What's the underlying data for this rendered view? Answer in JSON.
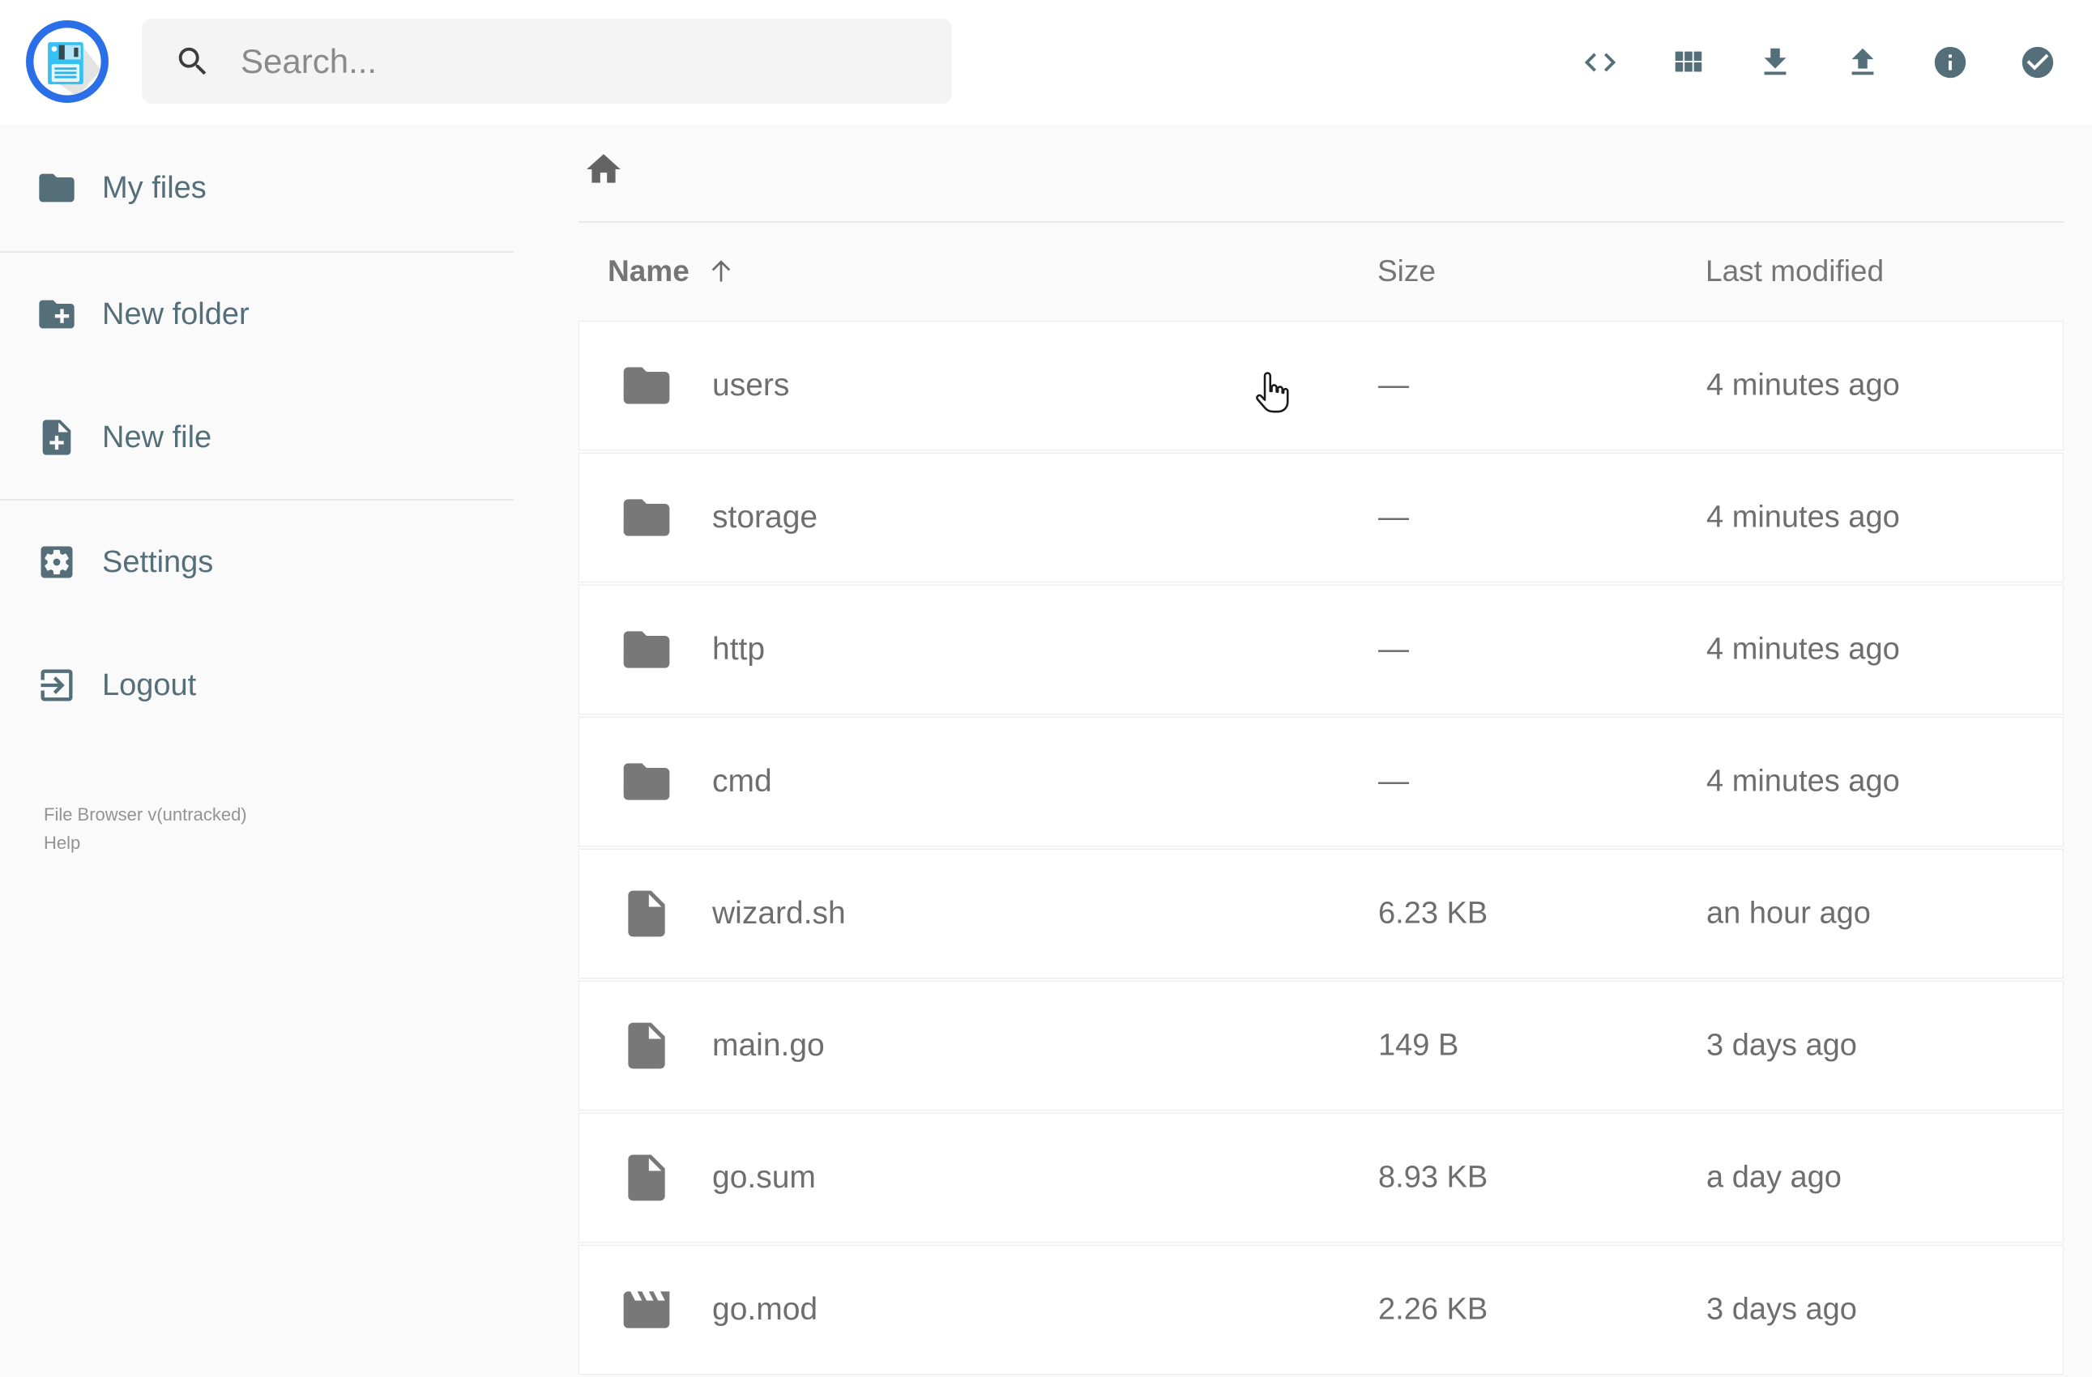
{
  "app": {
    "name": "File Browser"
  },
  "header": {
    "search": {
      "placeholder": "Search...",
      "value": ""
    },
    "actions": [
      {
        "icon": "code-icon"
      },
      {
        "icon": "grid-view-icon"
      },
      {
        "icon": "download-icon"
      },
      {
        "icon": "upload-icon"
      },
      {
        "icon": "info-icon"
      },
      {
        "icon": "check-circle-icon"
      }
    ]
  },
  "sidebar": {
    "items": [
      {
        "label": "My files",
        "icon": "folder-icon"
      },
      {
        "label": "New folder",
        "icon": "new-folder-icon"
      },
      {
        "label": "New file",
        "icon": "new-file-icon"
      },
      {
        "label": "Settings",
        "icon": "settings-icon"
      },
      {
        "label": "Logout",
        "icon": "logout-icon"
      }
    ],
    "footer": {
      "version": "File Browser v(untracked)",
      "help": "Help"
    }
  },
  "listing": {
    "breadcrumb": {
      "root_icon": "home-icon"
    },
    "columns": {
      "name": "Name",
      "size": "Size",
      "modified": "Last modified"
    },
    "sort": {
      "column": "Name",
      "direction": "ascending"
    },
    "rows": [
      {
        "name": "users",
        "icon": "folder-icon",
        "size": "—",
        "modified": "4 minutes ago"
      },
      {
        "name": "storage",
        "icon": "folder-icon",
        "size": "—",
        "modified": "4 minutes ago"
      },
      {
        "name": "http",
        "icon": "folder-icon",
        "size": "—",
        "modified": "4 minutes ago"
      },
      {
        "name": "cmd",
        "icon": "folder-icon",
        "size": "—",
        "modified": "4 minutes ago"
      },
      {
        "name": "wizard.sh",
        "icon": "file-icon",
        "size": "6.23 KB",
        "modified": "an hour ago"
      },
      {
        "name": "main.go",
        "icon": "file-icon",
        "size": "149 B",
        "modified": "3 days ago"
      },
      {
        "name": "go.sum",
        "icon": "file-icon",
        "size": "8.93 KB",
        "modified": "a day ago"
      },
      {
        "name": "go.mod",
        "icon": "movie-icon",
        "size": "2.26 KB",
        "modified": "3 days ago"
      }
    ]
  },
  "colors": {
    "accent_blue": "#2a6fe8",
    "slate": "#546e7a",
    "row_text": "#6e6e6e",
    "background": "#fafafa",
    "card": "#ffffff"
  }
}
